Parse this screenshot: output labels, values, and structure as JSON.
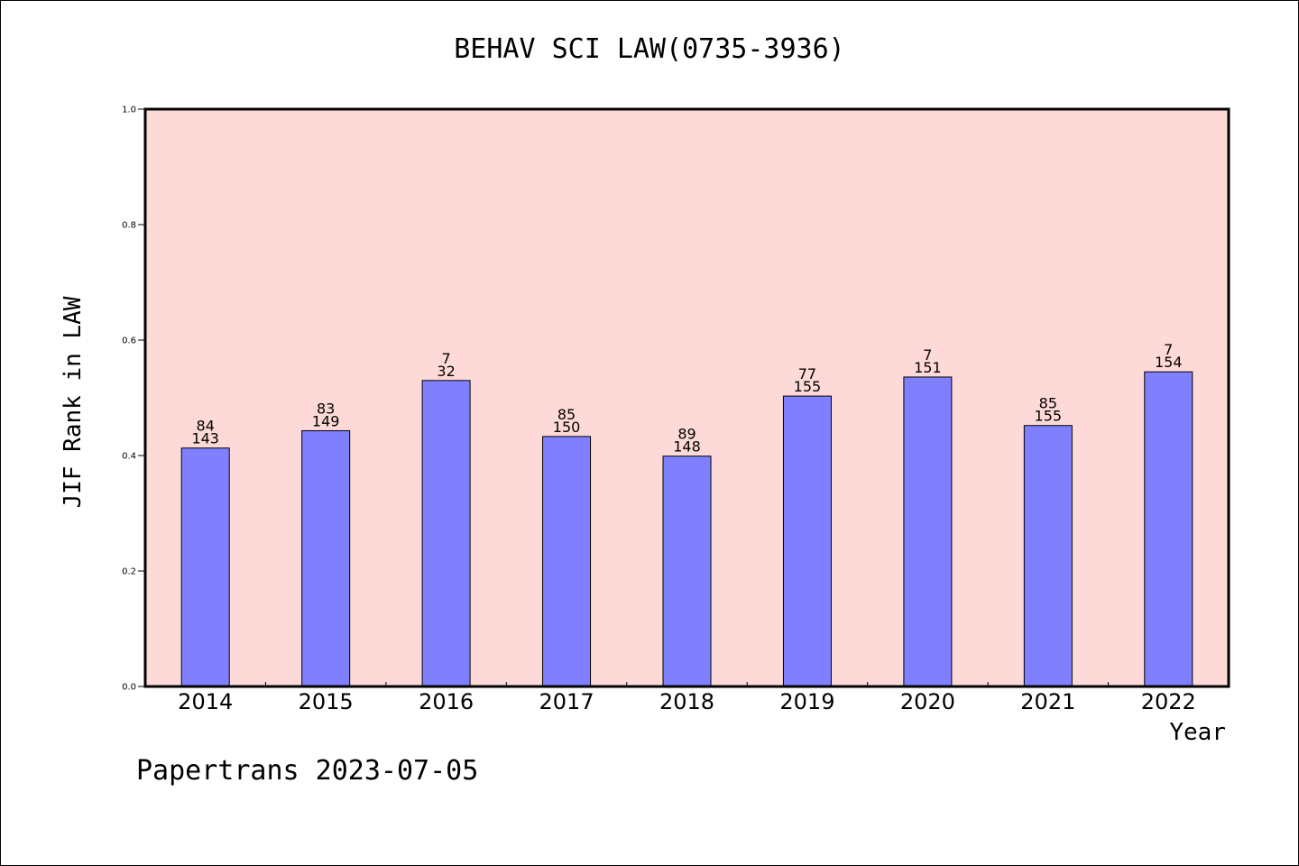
{
  "chart_data": {
    "type": "bar",
    "title": "BEHAV SCI LAW(0735-3936)",
    "xlabel": "Year",
    "ylabel": "JIF Rank in LAW",
    "categories": [
      "2014",
      "2015",
      "2016",
      "2017",
      "2018",
      "2019",
      "2020",
      "2021",
      "2022"
    ],
    "values": [
      0.413,
      0.443,
      0.53,
      0.433,
      0.399,
      0.503,
      0.536,
      0.452,
      0.545
    ],
    "rank_labels": [
      "84",
      "83",
      "7",
      "85",
      "89",
      "77",
      "7",
      "85",
      "7"
    ],
    "total_labels": [
      "143",
      "149",
      "32",
      "150",
      "148",
      "155",
      "151",
      "155",
      "154"
    ],
    "ylim": [
      0,
      1.0
    ],
    "yticks": [
      "0.0",
      "0.2",
      "0.4",
      "0.6",
      "0.8",
      "1.0"
    ],
    "grid": false,
    "colors": {
      "bar": "#8080ff",
      "plot_background": "#fddad7",
      "bar_edge": "#000000"
    }
  },
  "footer": "Papertrans 2023-07-05"
}
